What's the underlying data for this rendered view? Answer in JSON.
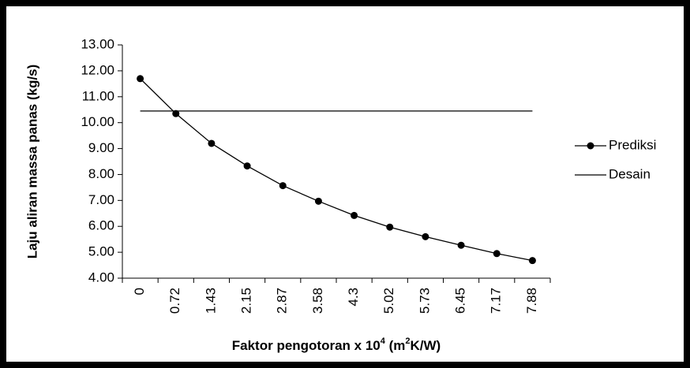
{
  "chart_data": {
    "type": "line",
    "y_label": "Laju aliran massa panas (kg/s)",
    "x_label": [
      "Faktor pengotoran x 10",
      "4",
      " (m",
      "2",
      "K/W)"
    ],
    "categories": [
      "0",
      "0.72",
      "1.43",
      "2.15",
      "2.87",
      "3.58",
      "4.3",
      "5.02",
      "5.73",
      "6.45",
      "7.17",
      "7.88"
    ],
    "series": [
      {
        "name": "Prediksi",
        "color": "#000000",
        "marker": true,
        "values": [
          11.7,
          10.35,
          9.2,
          8.33,
          7.57,
          6.97,
          6.42,
          5.97,
          5.6,
          5.27,
          4.95,
          4.68
        ]
      },
      {
        "name": "Desain",
        "color": "#000000",
        "marker": false,
        "values": [
          10.45,
          10.45,
          10.45,
          10.45,
          10.45,
          10.45,
          10.45,
          10.45,
          10.45,
          10.45,
          10.45,
          10.45
        ]
      }
    ],
    "ylim": [
      4,
      13
    ],
    "yticks": [
      {
        "value": 4,
        "label": "4.00"
      },
      {
        "value": 5,
        "label": "5.00"
      },
      {
        "value": 6,
        "label": "6.00"
      },
      {
        "value": 7,
        "label": "7.00"
      },
      {
        "value": 8,
        "label": "8.00"
      },
      {
        "value": 9,
        "label": "9.00"
      },
      {
        "value": 10,
        "label": "10.00"
      },
      {
        "value": 11,
        "label": "11.00"
      },
      {
        "value": 12,
        "label": "12.00"
      },
      {
        "value": 13,
        "label": "13.00"
      }
    ],
    "legend": "right"
  }
}
